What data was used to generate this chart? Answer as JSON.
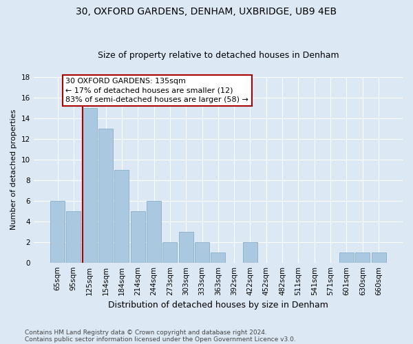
{
  "title": "30, OXFORD GARDENS, DENHAM, UXBRIDGE, UB9 4EB",
  "subtitle": "Size of property relative to detached houses in Denham",
  "xlabel": "Distribution of detached houses by size in Denham",
  "ylabel": "Number of detached properties",
  "bar_color": "#aac8e0",
  "bar_edge_color": "#88aec8",
  "vline_color": "#aa0000",
  "categories": [
    "65sqm",
    "95sqm",
    "125sqm",
    "154sqm",
    "184sqm",
    "214sqm",
    "244sqm",
    "273sqm",
    "303sqm",
    "333sqm",
    "363sqm",
    "392sqm",
    "422sqm",
    "452sqm",
    "482sqm",
    "511sqm",
    "541sqm",
    "571sqm",
    "601sqm",
    "630sqm",
    "660sqm"
  ],
  "values": [
    6,
    5,
    15,
    13,
    9,
    5,
    6,
    2,
    3,
    2,
    1,
    0,
    2,
    0,
    0,
    0,
    0,
    0,
    1,
    1,
    1
  ],
  "ylim": [
    0,
    18
  ],
  "yticks": [
    0,
    2,
    4,
    6,
    8,
    10,
    12,
    14,
    16,
    18
  ],
  "vline_index": 2,
  "annotation_title": "30 OXFORD GARDENS: 135sqm",
  "annotation_line1": "← 17% of detached houses are smaller (12)",
  "annotation_line2": "83% of semi-detached houses are larger (58) →",
  "footnote1": "Contains HM Land Registry data © Crown copyright and database right 2024.",
  "footnote2": "Contains public sector information licensed under the Open Government Licence v3.0.",
  "background_color": "#dce8f4",
  "plot_bg_color": "#dce8f4",
  "grid_color": "#ffffff",
  "title_fontsize": 10,
  "subtitle_fontsize": 9,
  "xlabel_fontsize": 9,
  "ylabel_fontsize": 8,
  "tick_fontsize": 7.5,
  "annotation_fontsize": 8,
  "footnote_fontsize": 6.5
}
